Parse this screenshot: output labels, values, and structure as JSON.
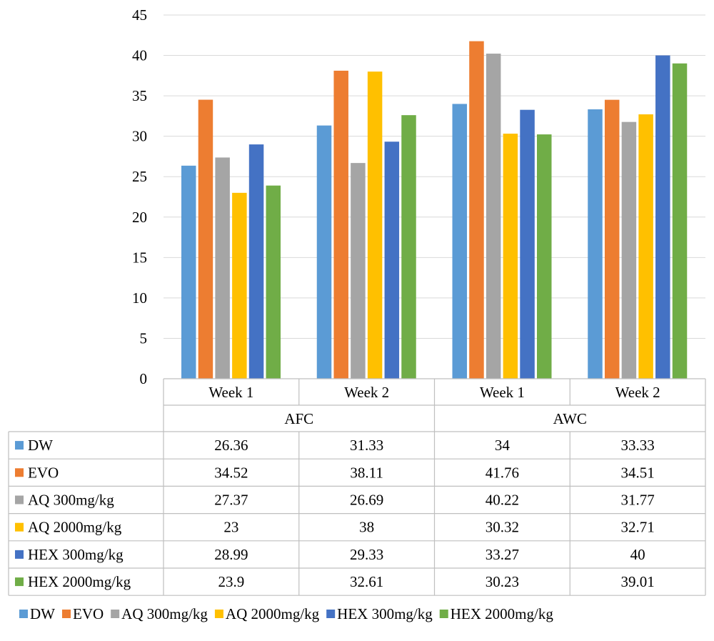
{
  "chart_data": {
    "type": "bar",
    "groups": [
      {
        "label": "AFC",
        "categories": [
          "Week 1",
          "Week 2"
        ]
      },
      {
        "label": "AWC",
        "categories": [
          "Week 1",
          "Week 2"
        ]
      }
    ],
    "categories": [
      "Week 1",
      "Week 2",
      "Week 1",
      "Week 2"
    ],
    "ylim": [
      0,
      45
    ],
    "yticks": [
      0,
      5,
      10,
      15,
      20,
      25,
      30,
      35,
      40,
      45
    ],
    "grid": true,
    "legend_position": "bottom",
    "data_table": true,
    "series": [
      {
        "name": "DW",
        "color": "#5B9BD5",
        "values": [
          26.36,
          31.33,
          34,
          33.33
        ],
        "labels": [
          "26.36",
          "31.33",
          "34",
          "33.33"
        ]
      },
      {
        "name": "EVO",
        "color": "#ED7D31",
        "values": [
          34.52,
          38.11,
          41.76,
          34.51
        ],
        "labels": [
          "34.52",
          "38.11",
          "41.76",
          "34.51"
        ]
      },
      {
        "name": "AQ 300mg/kg",
        "color": "#A5A5A5",
        "values": [
          27.37,
          26.69,
          40.22,
          31.77
        ],
        "labels": [
          "27.37",
          "26.69",
          "40.22",
          "31.77"
        ]
      },
      {
        "name": "AQ 2000mg/kg",
        "color": "#FFC000",
        "values": [
          23,
          38,
          30.32,
          32.71
        ],
        "labels": [
          "23",
          "38",
          "30.32",
          "32.71"
        ]
      },
      {
        "name": "HEX 300mg/kg",
        "color": "#4472C4",
        "values": [
          28.99,
          29.33,
          33.27,
          40
        ],
        "labels": [
          "28.99",
          "29.33",
          "33.27",
          "40"
        ]
      },
      {
        "name": "HEX 2000mg/kg",
        "color": "#70AD47",
        "values": [
          23.9,
          32.61,
          30.23,
          39.01
        ],
        "labels": [
          "23.9",
          "32.61",
          "30.23",
          "39.01"
        ]
      }
    ]
  }
}
